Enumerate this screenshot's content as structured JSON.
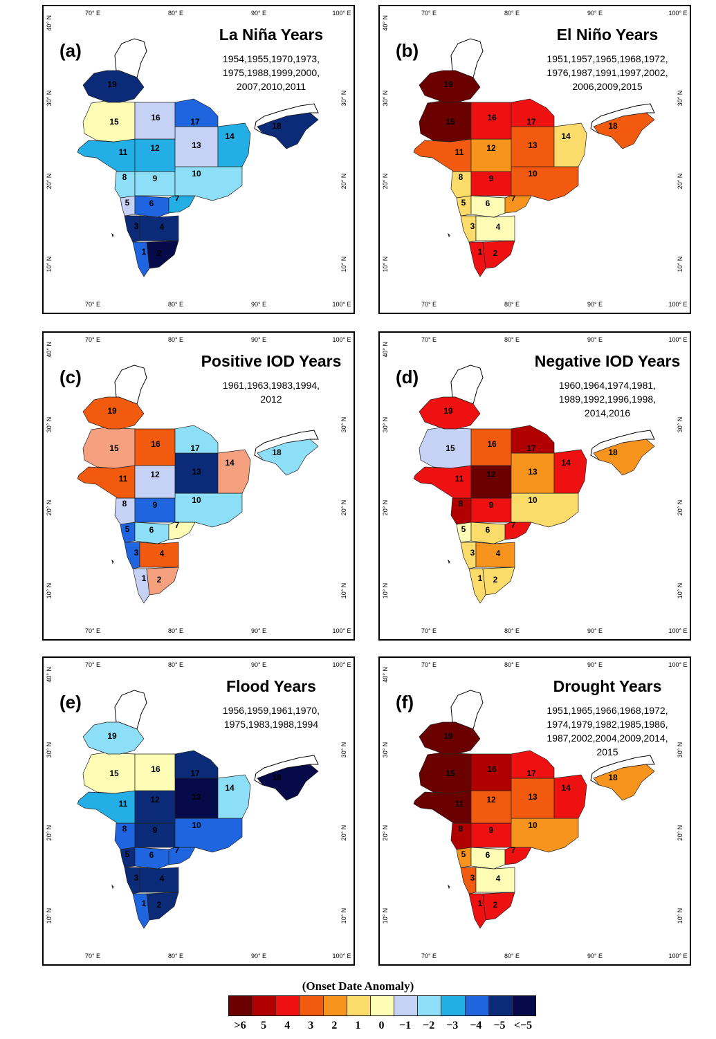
{
  "axes": {
    "lon_labels": [
      "70° E",
      "80° E",
      "90° E",
      "100° E"
    ],
    "lat_labels": [
      "40° N",
      "30° N",
      "20° N",
      "10° N"
    ]
  },
  "panels": [
    {
      "label": "(a)",
      "title": "La Niña Years",
      "years": [
        "1954,1955,1970,1973,",
        "1975,1988,1999,2000,",
        "2007,2010,2011"
      ],
      "anomaly": {
        "1": -4,
        "2": -6,
        "3": -5,
        "4": -5,
        "5": -1,
        "6": -4,
        "7": -3,
        "8": -2,
        "9": -2,
        "10": -2,
        "11": -3,
        "12": -3,
        "13": -1,
        "14": -3,
        "15": 0,
        "16": -1,
        "17": -4,
        "18": -5,
        "19": -5
      }
    },
    {
      "label": "(b)",
      "title": "El Niño Years",
      "years": [
        "1951,1957,1965,1968,1972,",
        "1976,1987,1991,1997,2002,",
        "2006,2009,2015"
      ],
      "anomaly": {
        "1": 4,
        "2": 4,
        "3": 1,
        "4": 0,
        "5": 1,
        "6": 0,
        "7": 2,
        "8": 1,
        "9": 4,
        "10": 3,
        "11": 3,
        "12": 2,
        "13": 3,
        "14": 1,
        "15": 6,
        "16": 4,
        "17": 4,
        "18": 3,
        "19": 6
      }
    },
    {
      "label": "(c)",
      "title": "Positive IOD Years",
      "years": [
        "1961,1963,1983,1994,",
        "2012"
      ],
      "anomaly": {
        "1": -1,
        "2": 2.5,
        "3": -4,
        "4": 3,
        "5": -4,
        "6": -2,
        "7": 0,
        "8": -1,
        "9": -4,
        "10": -2,
        "11": 3,
        "12": -1,
        "13": -5,
        "14": 2.5,
        "15": 2.5,
        "16": 3,
        "17": -2,
        "18": -2,
        "19": 3
      }
    },
    {
      "label": "(d)",
      "title": "Negative IOD Years",
      "years": [
        "1960,1964,1974,1981,",
        "1989,1992,1996,1998,",
        "2014,2016"
      ],
      "anomaly": {
        "1": 1,
        "2": 1,
        "3": 1,
        "4": 2,
        "5": 0,
        "6": 1,
        "7": 4,
        "8": 5,
        "9": 4,
        "10": 1,
        "11": 4,
        "12": 6,
        "13": 2,
        "14": 4,
        "15": -1,
        "16": 3,
        "17": 5,
        "18": 2,
        "19": 4
      }
    },
    {
      "label": "(e)",
      "title": "Flood Years",
      "years": [
        "1956,1959,1961,1970,",
        "1975,1983,1988,1994"
      ],
      "anomaly": {
        "1": -4,
        "2": -5,
        "3": -5,
        "4": -5,
        "5": -5,
        "6": -4,
        "7": -4,
        "8": -4,
        "9": -5,
        "10": -4,
        "11": -3,
        "12": -5,
        "13": -6,
        "14": -2,
        "15": 0,
        "16": 0,
        "17": -5,
        "18": -6,
        "19": -2
      }
    },
    {
      "label": "(f)",
      "title": "Drought Years",
      "years": [
        "1951,1965,1966,1968,1972,",
        "1974,1979,1982,1985,1986,",
        "1987,2002,2004,2009,2014,",
        "2015"
      ],
      "anomaly": {
        "1": 4,
        "2": 4,
        "3": 3,
        "4": 0,
        "5": 2,
        "6": 0,
        "7": 4,
        "8": 5,
        "9": 4,
        "10": 2,
        "11": 6,
        "12": 3,
        "13": 3,
        "14": 4,
        "15": 6,
        "16": 5,
        "17": 4,
        "18": 2,
        "19": 6
      }
    }
  ],
  "legend": {
    "title": "(Onset Date Anomaly)",
    "labels": [
      ">6",
      "5",
      "4",
      "3",
      "2",
      "1",
      "0",
      "−1",
      "−2",
      "−3",
      "−4",
      "−5",
      "<−5"
    ],
    "colors": [
      "#6b0000",
      "#b00000",
      "#ee1111",
      "#f25a0f",
      "#f7941d",
      "#fbdc6a",
      "#fdfdb6",
      "#c5d2f5",
      "#8ddff7",
      "#23aee6",
      "#1f65e0",
      "#0b2a78",
      "#060a48"
    ]
  },
  "colors": {
    "light_orange": "#f5a07e"
  }
}
